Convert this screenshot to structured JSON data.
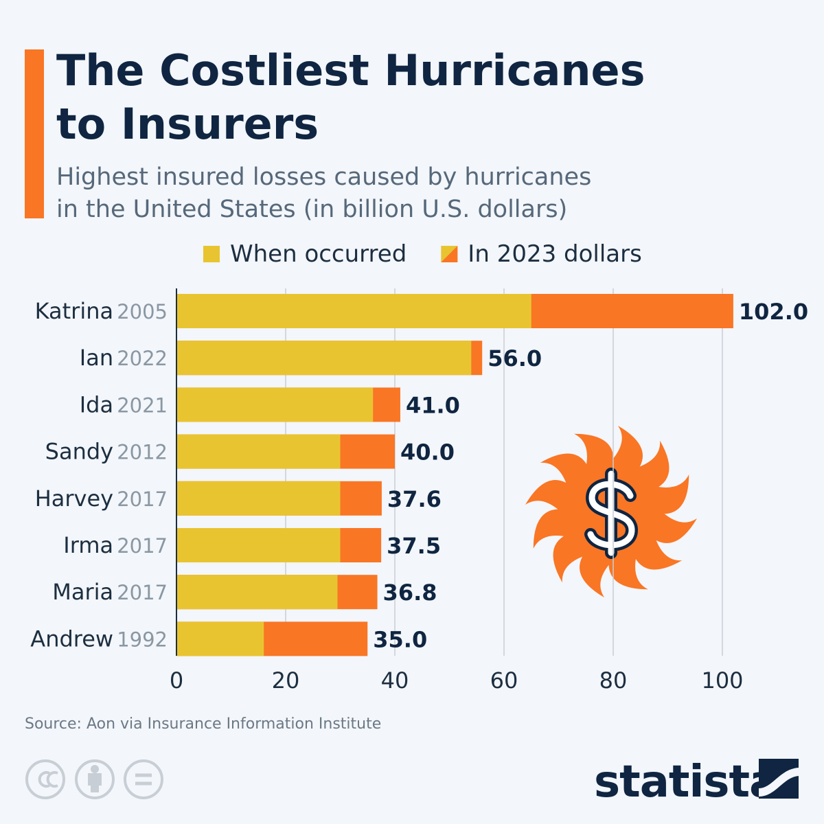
{
  "chart_data": {
    "type": "bar",
    "orientation": "horizontal",
    "title": [
      "The Costliest Hurricanes",
      "to Insurers"
    ],
    "subtitle": [
      "Highest insured losses caused by hurricanes",
      "in the United States (in billion U.S. dollars)"
    ],
    "categories": [
      "Katrina",
      "Ian",
      "Ida",
      "Sandy",
      "Harvey",
      "Irma",
      "Maria",
      "Andrew"
    ],
    "years": [
      "2005",
      "2022",
      "2021",
      "2012",
      "2017",
      "2017",
      "2017",
      "1992"
    ],
    "series": [
      {
        "name": "In 2023 dollars",
        "color": "#f97625",
        "values": [
          102,
          56,
          41,
          40,
          37.6,
          37.5,
          36.8,
          35
        ],
        "value_labels": [
          "102.0",
          "56.0",
          "41.0",
          "40.0",
          "37.6",
          "37.5",
          "36.8",
          "35.0"
        ]
      },
      {
        "name": "When occurred",
        "color": "#e9c431",
        "values": [
          65,
          54,
          36,
          30,
          30,
          30,
          29.5,
          16
        ]
      }
    ],
    "legend_order": [
      1,
      0
    ],
    "xlim": [
      0,
      100
    ],
    "xticks": [
      0,
      20,
      40,
      60,
      80,
      100
    ],
    "grid": true,
    "source": "Source: Aon via Insurance Information Institute",
    "brand": "statista"
  }
}
